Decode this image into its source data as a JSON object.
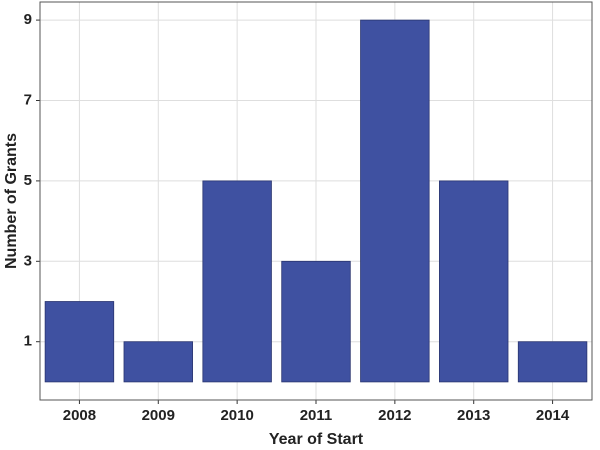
{
  "chart_data": {
    "type": "bar",
    "x_label": "Year of Start",
    "y_label": "Number of Grants",
    "categories": [
      "2008",
      "2009",
      "2010",
      "2011",
      "2012",
      "2013",
      "2014"
    ],
    "values": [
      2,
      1,
      5,
      3,
      9,
      5,
      1
    ],
    "color": "#3f51a1",
    "ylim": [
      -0.45,
      9.45
    ],
    "yticks": [
      1,
      3,
      5,
      7,
      9
    ],
    "grid": true
  }
}
